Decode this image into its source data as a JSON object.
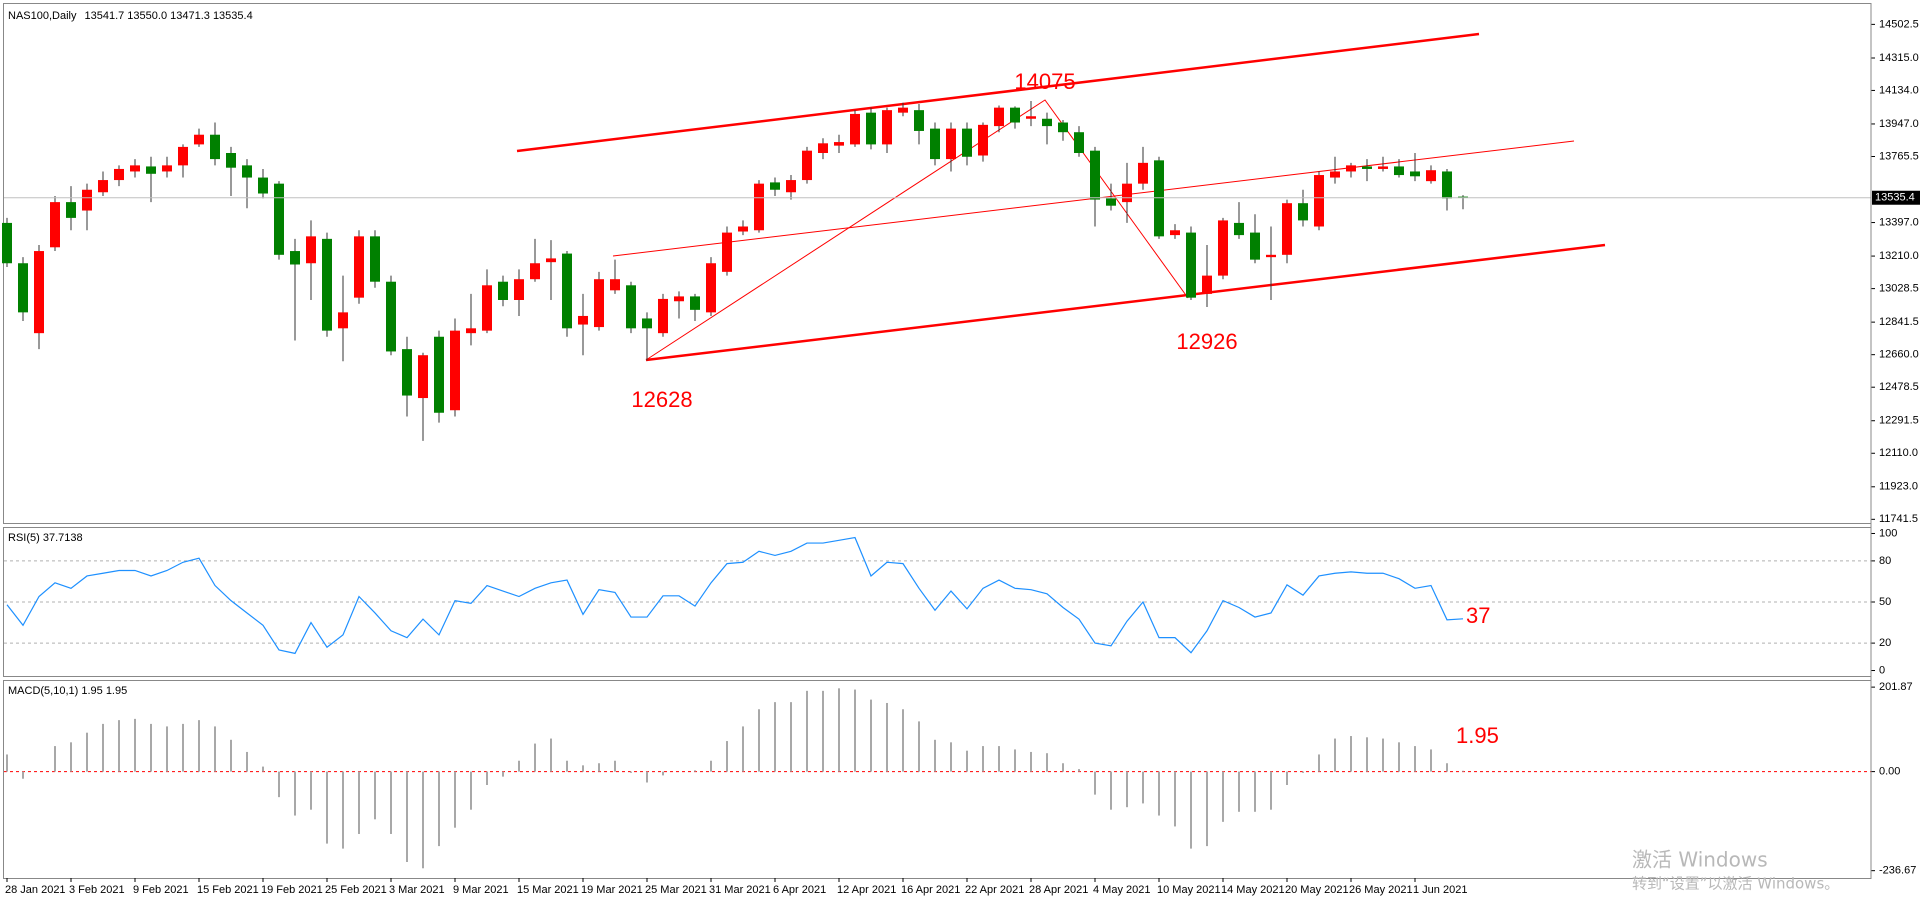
{
  "chart_data": [
    {
      "type": "candlestick",
      "title": "NAS100,Daily",
      "subtitle": "13541.7 13550.0 13471.3 13535.4",
      "categories": [
        "28 Jan 2021",
        null,
        null,
        null,
        "3 Feb 2021",
        null,
        null,
        null,
        "9 Feb 2021",
        null,
        null,
        null,
        "15 Feb 2021",
        null,
        null,
        null,
        "19 Feb 2021",
        null,
        null,
        null,
        "25 Feb 2021",
        null,
        null,
        null,
        "3 Mar 2021",
        null,
        null,
        null,
        "9 Mar 2021",
        null,
        null,
        null,
        "15 Mar 2021",
        null,
        null,
        null,
        "19 Mar 2021",
        null,
        null,
        null,
        "25 Mar 2021",
        null,
        null,
        null,
        "31 Mar 2021",
        null,
        null,
        null,
        "6 Apr 2021",
        null,
        null,
        null,
        "12 Apr 2021",
        null,
        null,
        null,
        "16 Apr 2021",
        null,
        null,
        null,
        "22 Apr 2021",
        null,
        null,
        null,
        "28 Apr 2021",
        null,
        null,
        null,
        "4 May 2021",
        null,
        null,
        null,
        "10 May 2021",
        null,
        null,
        null,
        "14 May 2021",
        null,
        null,
        null,
        "20 May 2021",
        null,
        null,
        null,
        "26 May 2021",
        null,
        null,
        null,
        "1 Jun 2021",
        null,
        null,
        null
      ],
      "open": [
        13395,
        13170,
        12780,
        13259,
        13511,
        13464,
        13566,
        13634,
        13682,
        13710,
        13682,
        13716,
        13833,
        13887,
        13785,
        13716,
        13648,
        13614,
        13238,
        13170,
        13306,
        12807,
        12978,
        13320,
        13067,
        12691,
        12418,
        12760,
        12350,
        12780,
        12794,
        13067,
        12965,
        13081,
        13176,
        13224,
        12828,
        12814,
        13019,
        13047,
        12862,
        12780,
        12958,
        12985,
        12896,
        13122,
        13347,
        13354,
        13621,
        13566,
        13634,
        13785,
        13826,
        13833,
        14010,
        13833,
        14010,
        14024,
        13921,
        13751,
        13921,
        13771,
        13935,
        14038,
        13976,
        13976,
        13955,
        13901,
        13798,
        13532,
        13511,
        13614,
        13744,
        13327,
        13341,
        12999,
        13101,
        13395,
        13341,
        13204,
        13217,
        13505,
        13375,
        13648,
        13682,
        13710,
        13696,
        13710,
        13682,
        13628,
        13682,
        13541.7
      ],
      "high": [
        13423,
        13204,
        13272,
        13545,
        13600,
        13614,
        13682,
        13716,
        13751,
        13764,
        13764,
        13833,
        13921,
        13955,
        13819,
        13751,
        13696,
        13628,
        13306,
        13409,
        13341,
        13101,
        13354,
        13354,
        13101,
        12760,
        12671,
        12794,
        12862,
        12999,
        13136,
        13101,
        13136,
        13306,
        13299,
        13238,
        12999,
        13122,
        13190,
        13067,
        12896,
        12999,
        13013,
        12999,
        13204,
        13375,
        13409,
        13634,
        13648,
        13662,
        13819,
        13867,
        13887,
        14024,
        14038,
        14038,
        14065,
        14058,
        13955,
        13955,
        13955,
        13955,
        14050,
        14045,
        14075,
        14010,
        13969,
        13935,
        13819,
        13614,
        13730,
        13819,
        13764,
        13388,
        13375,
        13272,
        13423,
        13511,
        13443,
        13375,
        13525,
        13580,
        13682,
        13764,
        13730,
        13751,
        13764,
        13751,
        13785,
        13716,
        13696,
        13550
      ],
      "low": [
        13149,
        12848,
        12691,
        13238,
        13354,
        13354,
        13545,
        13600,
        13648,
        13511,
        13648,
        13648,
        13819,
        13716,
        13545,
        13477,
        13532,
        13190,
        12739,
        12965,
        12760,
        12623,
        12944,
        13033,
        12657,
        12315,
        12179,
        12281,
        12315,
        12712,
        12780,
        12930,
        12876,
        13067,
        12965,
        12760,
        12657,
        12794,
        12999,
        12780,
        12628,
        12760,
        12862,
        12848,
        12876,
        13101,
        13327,
        13341,
        13545,
        13525,
        13614,
        13751,
        13785,
        13819,
        13805,
        13785,
        13990,
        13833,
        13716,
        13682,
        13716,
        13737,
        13901,
        13921,
        13935,
        13833,
        13853,
        13764,
        13375,
        13464,
        13395,
        13580,
        13306,
        13306,
        12965,
        12926,
        13081,
        13306,
        13170,
        12965,
        13170,
        13375,
        13354,
        13614,
        13648,
        13628,
        13682,
        13648,
        13628,
        13614,
        13464,
        13471.3
      ],
      "close": [
        13170,
        12896,
        13238,
        13511,
        13423,
        13580,
        13634,
        13696,
        13716,
        13669,
        13716,
        13819,
        13887,
        13751,
        13703,
        13648,
        13559,
        13217,
        13163,
        13320,
        12794,
        12896,
        13320,
        13067,
        12678,
        12432,
        12657,
        12336,
        12794,
        12807,
        13047,
        12965,
        13081,
        13170,
        13197,
        12807,
        12876,
        13081,
        13081,
        12807,
        12807,
        12971,
        12985,
        12910,
        13170,
        13341,
        13375,
        13614,
        13580,
        13634,
        13798,
        13839,
        13846,
        14003,
        13833,
        14024,
        14038,
        13908,
        13751,
        13921,
        13764,
        13942,
        14038,
        13955,
        13990,
        13935,
        13901,
        13785,
        13525,
        13491,
        13614,
        13730,
        13320,
        13354,
        12978,
        13101,
        13409,
        13327,
        13190,
        13217,
        13505,
        13409,
        13662,
        13682,
        13716,
        13696,
        13710,
        13662,
        13655,
        13689,
        13532,
        13535.4
      ],
      "up_color": "#ff0000",
      "down_color": "#008000",
      "ylim": [
        11721,
        14605
      ],
      "yticks": [
        14502.5,
        {
          "value": 14315,
          "label": "14315.0"
        },
        {
          "value": 14134,
          "label": "14134.0"
        },
        {
          "value": 13947,
          "label": "13947.0"
        },
        13765.5,
        {
          "value": 13397,
          "label": "13397.0"
        },
        {
          "value": 13210,
          "label": "13210.0"
        },
        13028.5,
        12841.5,
        {
          "value": 12660,
          "label": "12660.0"
        },
        12478.5,
        12291.5,
        {
          "value": 12110,
          "label": "12110.0"
        },
        {
          "value": 11923,
          "label": "11923.0"
        },
        11741.5
      ],
      "current_price": 13535.4,
      "annotations": [
        "14075",
        "12926",
        "12628"
      ],
      "annotation_color": "#ff0000"
    },
    {
      "type": "line",
      "title": "RSI(5) 37.7138",
      "color": "#1e90ff",
      "values": [
        48,
        33,
        54,
        64,
        60,
        69,
        71,
        73,
        73,
        69,
        73,
        79,
        82,
        62,
        51,
        42,
        33,
        15,
        12.5,
        35,
        17,
        26,
        54,
        42,
        29,
        24,
        37.5,
        26,
        51,
        49,
        62,
        58,
        54,
        60,
        64,
        66,
        41,
        59,
        57,
        39,
        39,
        54.5,
        54.5,
        47,
        64,
        78,
        79,
        87,
        84,
        87,
        93,
        93,
        95,
        97,
        69,
        79,
        78,
        60,
        44,
        58,
        45,
        60,
        66,
        60,
        59,
        56,
        46,
        37.5,
        20,
        18,
        36,
        50,
        24,
        24,
        13,
        29,
        51,
        46,
        39,
        42,
        62.5,
        55,
        69,
        71,
        72,
        71,
        71,
        67,
        60,
        62,
        37,
        37.7138
      ],
      "ylim": [
        -4,
        104
      ],
      "yticks": [
        100,
        80,
        50,
        20,
        0
      ],
      "levels": [
        80,
        50,
        20
      ],
      "level_color": "#b0b0b0",
      "annotations": [
        "37"
      ],
      "annotation_color": "#ff0000"
    },
    {
      "type": "bar",
      "title": "MACD(5,10,1) 1.95 1.95",
      "color": "#a8a8a8",
      "values": [
        41,
        -17,
        0,
        61,
        70,
        93,
        114,
        123,
        126,
        114,
        108,
        114,
        123,
        108,
        76,
        47,
        12,
        -61,
        -105,
        -91,
        -172,
        -184,
        -149,
        -114,
        -149,
        -216,
        -231,
        -178,
        -134,
        -91,
        -32,
        -12,
        26,
        67,
        79,
        26,
        15,
        20,
        26,
        -3,
        -26,
        -9,
        0,
        3,
        26,
        73,
        108,
        149,
        166,
        166,
        193,
        193,
        199,
        196,
        172,
        164,
        149,
        120,
        76,
        70,
        50,
        61,
        61,
        53,
        47,
        44,
        20,
        6,
        -55,
        -91,
        -85,
        -76,
        -105,
        -131,
        -184,
        -178,
        -120,
        -96,
        -96,
        -91,
        -32,
        -3,
        41,
        79,
        85,
        82,
        79,
        70,
        61,
        53,
        20,
        1.95
      ],
      "ylim": [
        -254.2,
        216.5
      ],
      "yticks": [
        201.87,
        {
          "value": 0,
          "label": "0.00"
        },
        -236.67
      ],
      "levels": [
        0
      ],
      "level_color": "#ff0000",
      "annotations": [
        "1.95"
      ],
      "annotation_color": "#ff0000"
    }
  ],
  "watermark": {
    "title": "激活 Windows",
    "text": "转到“设置”以激活 Windows。"
  }
}
